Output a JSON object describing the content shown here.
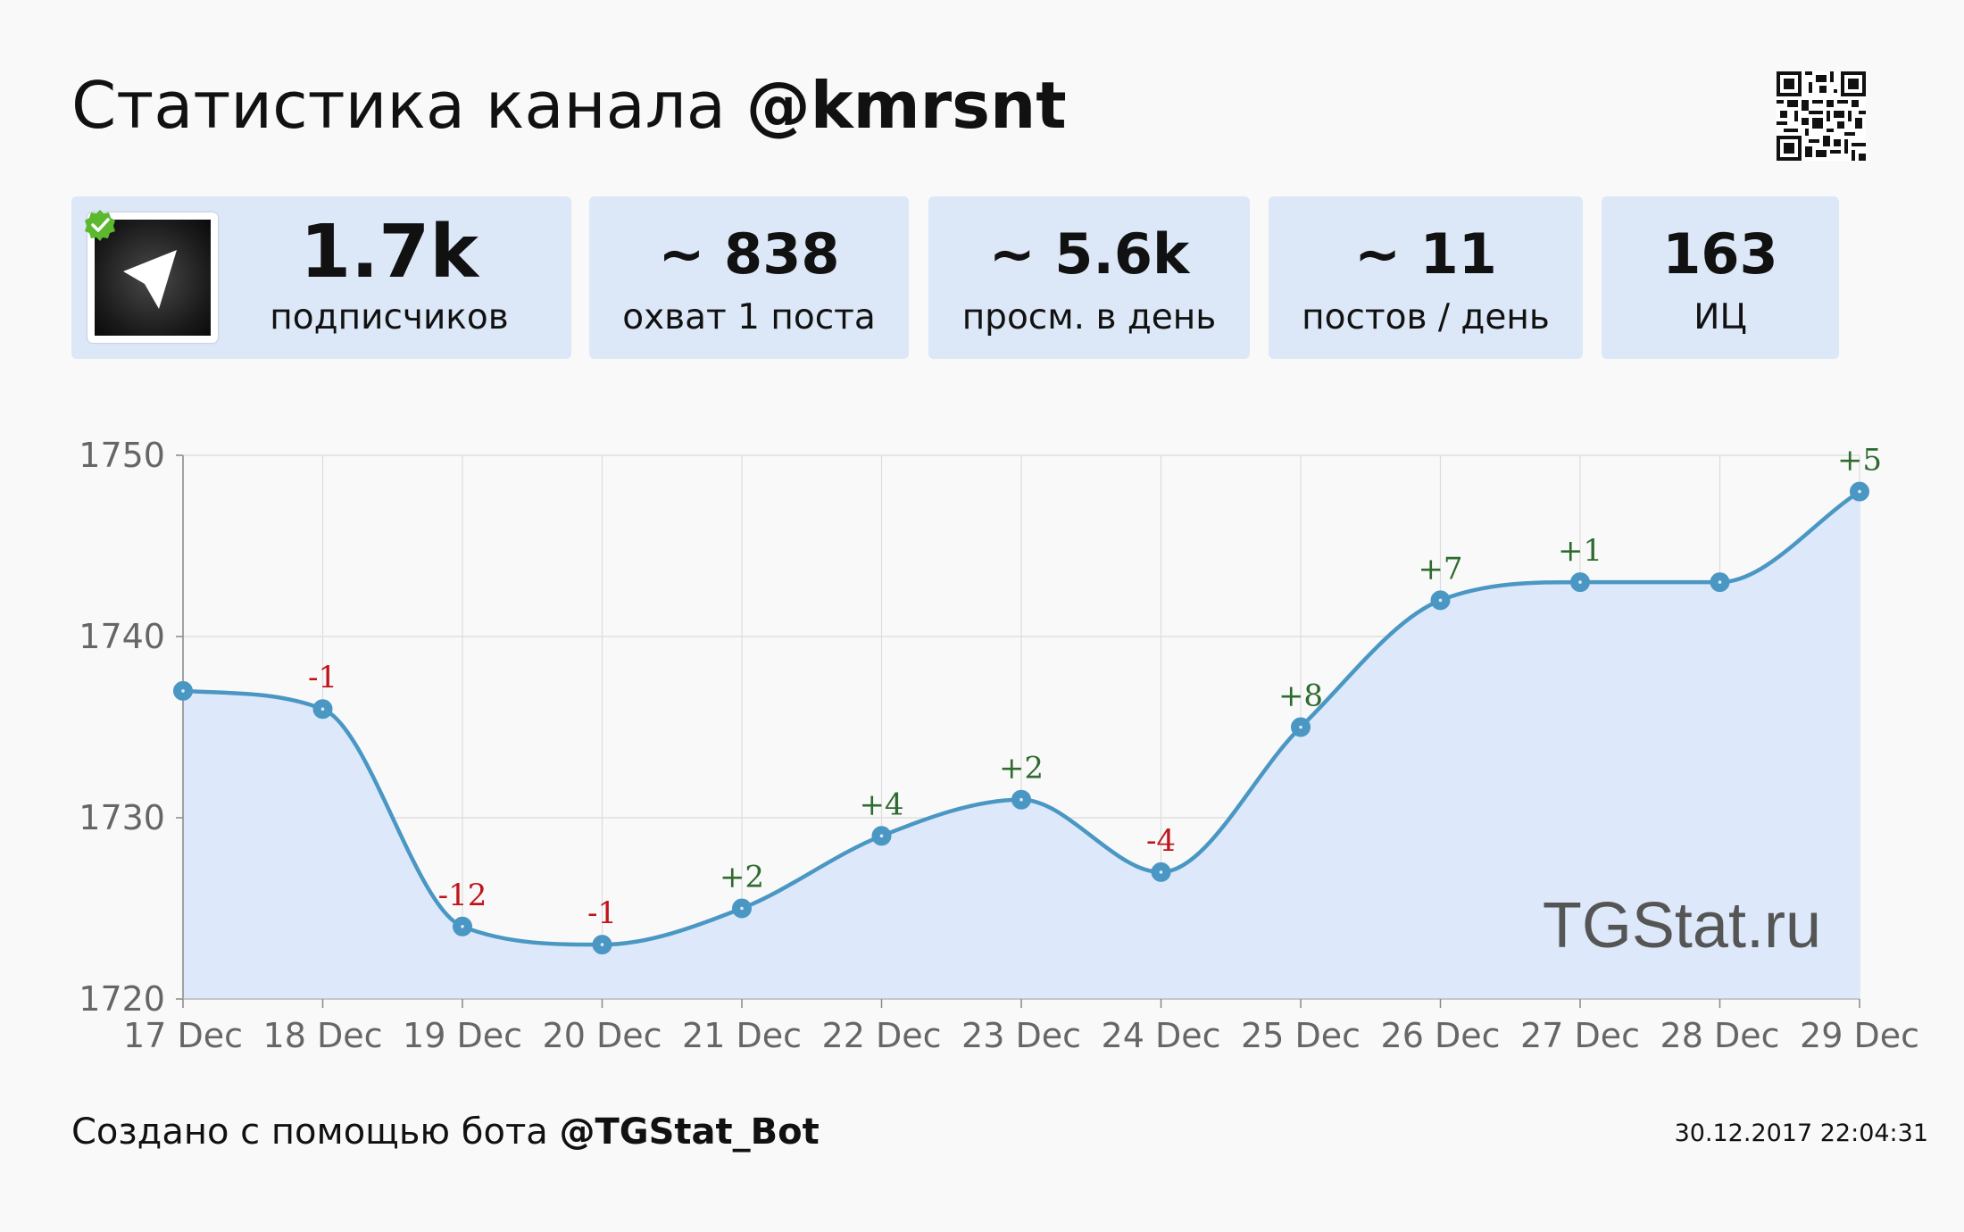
{
  "title": {
    "prefix": "Статистика канала",
    "channel": "@kmrsnt"
  },
  "stats": [
    {
      "value": "1.7k",
      "label": "подписчиков"
    },
    {
      "value": "~ 838",
      "label": "охват 1 поста"
    },
    {
      "value": "~ 5.6k",
      "label": "просм. в день"
    },
    {
      "value": "~ 11",
      "label": "постов / день"
    },
    {
      "value": "163",
      "label": "ИЦ"
    }
  ],
  "icons": {
    "avatar": "telegram-paper-plane-icon",
    "verified": "verified-check-icon",
    "qr": "qr-code-icon"
  },
  "colors": {
    "line": "#4a97c4",
    "area": "#dde9fa",
    "card": "#dce7f7",
    "positive": "#2e6b2e",
    "negative": "#c0141c"
  },
  "chart_data": {
    "type": "area",
    "x": [
      "17 Dec",
      "18 Dec",
      "19 Dec",
      "20 Dec",
      "21 Dec",
      "22 Dec",
      "23 Dec",
      "24 Dec",
      "25 Dec",
      "26 Dec",
      "27 Dec",
      "28 Dec",
      "29 Dec"
    ],
    "series": [
      {
        "values": [
          1737,
          1736,
          1724,
          1723,
          1725,
          1729,
          1731,
          1727,
          1735,
          1742,
          1743,
          1743,
          1748
        ],
        "changes": [
          "",
          "-1",
          "-12",
          "-1",
          "+2",
          "+4",
          "+2",
          "-4",
          "+8",
          "+7",
          "+1",
          "",
          "+5"
        ]
      }
    ],
    "y_ticks": [
      "1720",
      "1730",
      "1740",
      "1750"
    ],
    "ylim": [
      1720,
      1750
    ],
    "grid": true,
    "watermark": "TGStat.ru"
  },
  "footer": {
    "prefix": "Создано с помощью бота",
    "bot": "@TGStat_Bot",
    "timestamp": "30.12.2017 22:04:31"
  }
}
